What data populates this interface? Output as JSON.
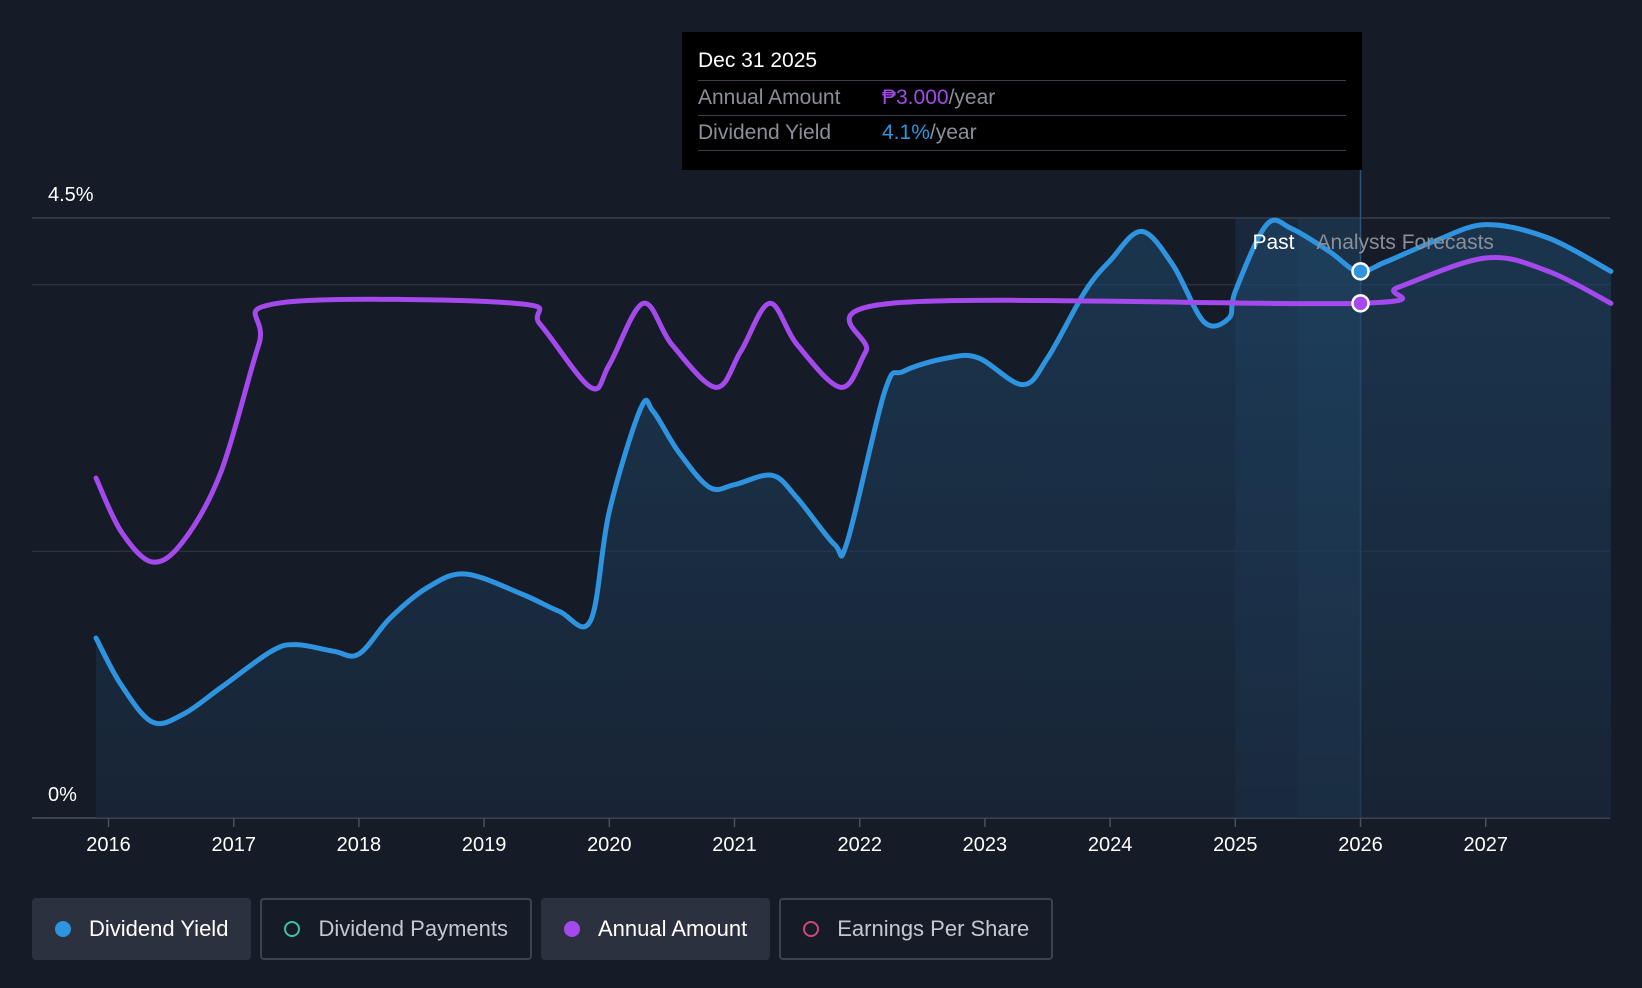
{
  "chart_data": {
    "type": "line",
    "x_ticks": [
      "2016",
      "2017",
      "2018",
      "2019",
      "2020",
      "2021",
      "2022",
      "2023",
      "2024",
      "2025",
      "2026",
      "2027"
    ],
    "y_tick_labels": [
      "4.5%",
      "0%"
    ],
    "ylim": [
      0,
      4.5
    ],
    "xlim": [
      2015.6,
      2028.0
    ],
    "grid": true,
    "past_label": "Past",
    "forecast_label": "Analysts Forecasts",
    "forecast_start": 2025.5,
    "series": [
      {
        "name": "Dividend Yield",
        "color": "#2f94e0",
        "unit": "%",
        "filled": true,
        "x": [
          2015.9,
          2016.1,
          2016.35,
          2016.6,
          2016.9,
          2017.3,
          2017.5,
          2017.8,
          2018.0,
          2018.25,
          2018.55,
          2018.85,
          2019.3,
          2019.6,
          2019.85,
          2020.0,
          2020.25,
          2020.35,
          2020.55,
          2020.8,
          2021.0,
          2021.3,
          2021.5,
          2021.8,
          2021.9,
          2022.2,
          2022.35,
          2022.7,
          2022.95,
          2023.3,
          2023.5,
          2023.8,
          2024.0,
          2024.25,
          2024.5,
          2024.75,
          2024.95,
          2025.0,
          2025.25,
          2025.45,
          2025.75,
          2025.98,
          2026.2,
          2026.6,
          2027.0,
          2027.5,
          2028.0
        ],
        "y": [
          1.35,
          1.0,
          0.72,
          0.78,
          0.98,
          1.25,
          1.3,
          1.25,
          1.23,
          1.5,
          1.73,
          1.83,
          1.68,
          1.55,
          1.48,
          2.3,
          3.07,
          3.05,
          2.75,
          2.48,
          2.5,
          2.57,
          2.4,
          2.05,
          2.07,
          3.2,
          3.35,
          3.45,
          3.45,
          3.25,
          3.45,
          3.95,
          4.18,
          4.4,
          4.15,
          3.72,
          3.75,
          3.95,
          4.45,
          4.42,
          4.25,
          4.1,
          4.17,
          4.33,
          4.45,
          4.35,
          4.1
        ]
      },
      {
        "name": "Annual Amount",
        "color": "#a449ec",
        "unit": "₱",
        "filled": false,
        "x": [
          2015.9,
          2016.1,
          2016.35,
          2016.6,
          2016.9,
          2017.2,
          2017.35,
          2019.25,
          2019.45,
          2019.85,
          2020.0,
          2020.27,
          2020.5,
          2020.85,
          2021.05,
          2021.28,
          2021.5,
          2021.85,
          2022.05,
          2022.25,
          2025.98,
          2026.3,
          2027.0,
          2027.5,
          2028.0
        ],
        "y": [
          2.55,
          2.15,
          1.92,
          2.08,
          2.6,
          3.55,
          3.86,
          3.86,
          3.7,
          3.23,
          3.4,
          3.86,
          3.55,
          3.23,
          3.5,
          3.86,
          3.55,
          3.23,
          3.5,
          3.86,
          3.86,
          3.98,
          4.2,
          4.1,
          3.86
        ]
      }
    ],
    "highlight": {
      "x": 2026.0,
      "date": "Dec 31 2025",
      "annual_amount_label": "Annual Amount",
      "annual_amount_value": "₱3.000",
      "dividend_yield_label": "Dividend Yield",
      "dividend_yield_value": "4.1%",
      "unit_suffix": "/year",
      "yield_y": 4.1,
      "amount_y": 3.86
    }
  },
  "colors": {
    "background": "#151b27",
    "grid": "#2b313e",
    "axis": "#4a505c",
    "yield": "#2f94e0",
    "amount": "#a449ec"
  },
  "legend": [
    {
      "name": "Dividend Yield",
      "active": true,
      "color": "#2f94e0"
    },
    {
      "name": "Dividend Payments",
      "active": false,
      "color": "#3fbfad"
    },
    {
      "name": "Annual Amount",
      "active": true,
      "color": "#a449ec"
    },
    {
      "name": "Earnings Per Share",
      "active": false,
      "color": "#d0487a"
    }
  ]
}
